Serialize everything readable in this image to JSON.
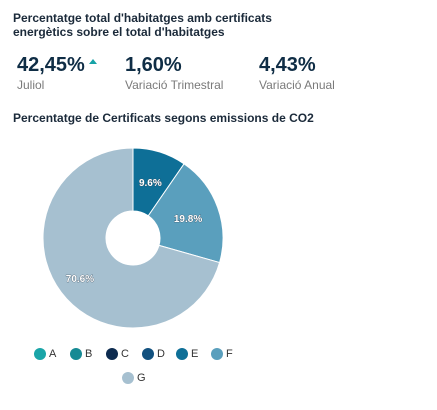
{
  "header": {
    "title": "Percentatge total d'habitatges amb certificats energètics sobre el total d'habitatges"
  },
  "kpis": [
    {
      "value": "42,45%",
      "label": "Juliol",
      "trend": "up",
      "trend_color": "#17a3a7"
    },
    {
      "value": "1,60%",
      "label": "Variació Trimestral"
    },
    {
      "value": "4,43%",
      "label": "Variació Anual"
    }
  ],
  "chart_data": {
    "type": "pie",
    "title": "Percentatge de Certificats segons emissions de CO2",
    "donut": true,
    "categories": [
      "A",
      "B",
      "C",
      "D",
      "E",
      "F",
      "G"
    ],
    "values": [
      0,
      0,
      0,
      0,
      9.6,
      19.8,
      70.6
    ],
    "data_labels": [
      "",
      "",
      "",
      "",
      "9.6%",
      "19.8%",
      "70.6%"
    ],
    "colors": [
      "#1aa5a8",
      "#168a94",
      "#0d2b4f",
      "#12517f",
      "#0e6f97",
      "#5a9fbd",
      "#a6c0d0"
    ],
    "legend_position": "bottom"
  }
}
